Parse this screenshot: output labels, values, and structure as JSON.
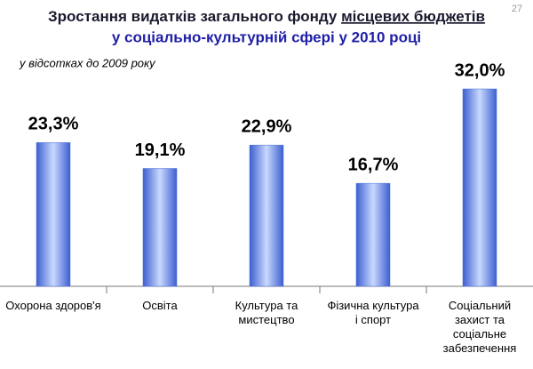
{
  "page": {
    "number": "27"
  },
  "chart_data": {
    "type": "bar",
    "title": "Зростання видатків загального фонду",
    "title_emphasis": "місцевих бюджетів",
    "subtitle": "у соціально-культурній сфері у 2010 році",
    "note": "у відсотках до 2009 року",
    "categories": [
      "Охорона здоров'я",
      "Освіта",
      "Культура та мистецтво",
      "Фізична культура і спорт",
      "Соціальний захист та соціальне забезпечення"
    ],
    "values": [
      23.3,
      19.1,
      22.9,
      16.7,
      32.0
    ],
    "value_labels": [
      "23,3%",
      "19,1%",
      "22,9%",
      "16,7%",
      "32,0%"
    ],
    "color": "#4a6fd8"
  }
}
